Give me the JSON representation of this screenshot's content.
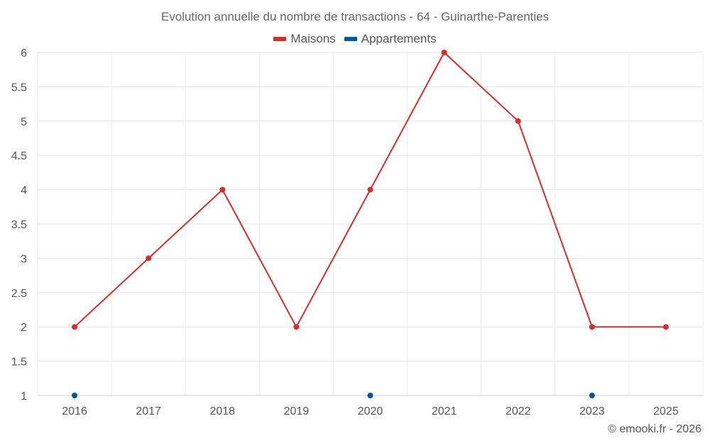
{
  "chart_data": {
    "type": "line",
    "title": "Evolution annuelle du nombre de transactions - 64 - Guinarthe-Parenties",
    "categories": [
      "2016",
      "2017",
      "2018",
      "2019",
      "2020",
      "2021",
      "2022",
      "2023",
      "2025"
    ],
    "series": [
      {
        "name": "Maisons",
        "color": "#d32f2f",
        "values": [
          2,
          3,
          4,
          2,
          4,
          6,
          5,
          2,
          2
        ]
      },
      {
        "name": "Appartements",
        "color": "#01579b",
        "values": [
          1,
          null,
          null,
          null,
          1,
          null,
          null,
          1,
          null
        ]
      }
    ],
    "ylim": [
      1,
      6
    ],
    "yticks": [
      "1",
      "1.5",
      "2",
      "2.5",
      "3",
      "3.5",
      "4",
      "4.5",
      "5",
      "5.5",
      "6"
    ],
    "grid": true,
    "legend_position": "top"
  },
  "credit": "© emooki.fr - 2026"
}
